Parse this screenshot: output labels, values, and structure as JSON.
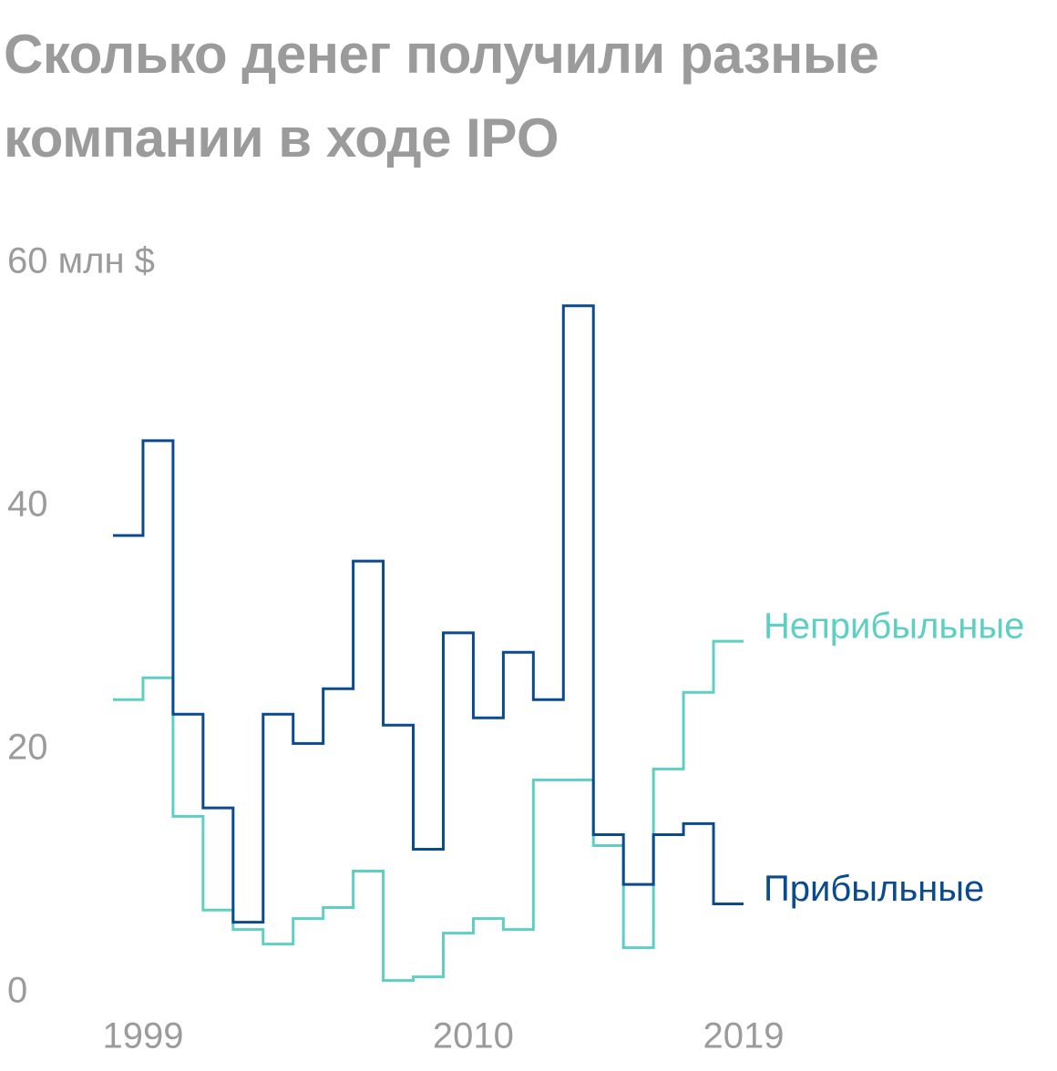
{
  "chart_data": {
    "type": "step",
    "title": "Сколько денег получили разные компании в ходе IPO",
    "x": [
      1998,
      1999,
      2000,
      2001,
      2002,
      2003,
      2004,
      2005,
      2006,
      2007,
      2008,
      2009,
      2010,
      2011,
      2012,
      2013,
      2014,
      2015,
      2016,
      2017,
      2018
    ],
    "series": [
      {
        "name": "Неприбыльные",
        "color": "#5ecfc3",
        "values": [
          24.1,
          25.9,
          14.5,
          6.8,
          5.2,
          4.0,
          6.1,
          7.0,
          10.0,
          1.0,
          1.3,
          4.9,
          6.1,
          5.2,
          17.5,
          17.5,
          12.1,
          3.7,
          18.4,
          24.7,
          28.9
        ]
      },
      {
        "name": "Прибыльные",
        "color": "#0a4a8f",
        "values": [
          37.6,
          45.4,
          22.9,
          15.2,
          5.8,
          22.9,
          20.5,
          25.0,
          35.5,
          22.0,
          11.8,
          29.6,
          22.6,
          28.0,
          24.1,
          56.5,
          13.0,
          8.9,
          13.0,
          13.9,
          7.3
        ]
      }
    ],
    "xlim": [
      1998,
      2019
    ],
    "xticks": [
      1999,
      2010,
      2019
    ],
    "ylim": [
      0,
      60
    ],
    "yticks": [
      0,
      20,
      40,
      {
        "value": 60,
        "label": "60 млн $"
      }
    ]
  }
}
